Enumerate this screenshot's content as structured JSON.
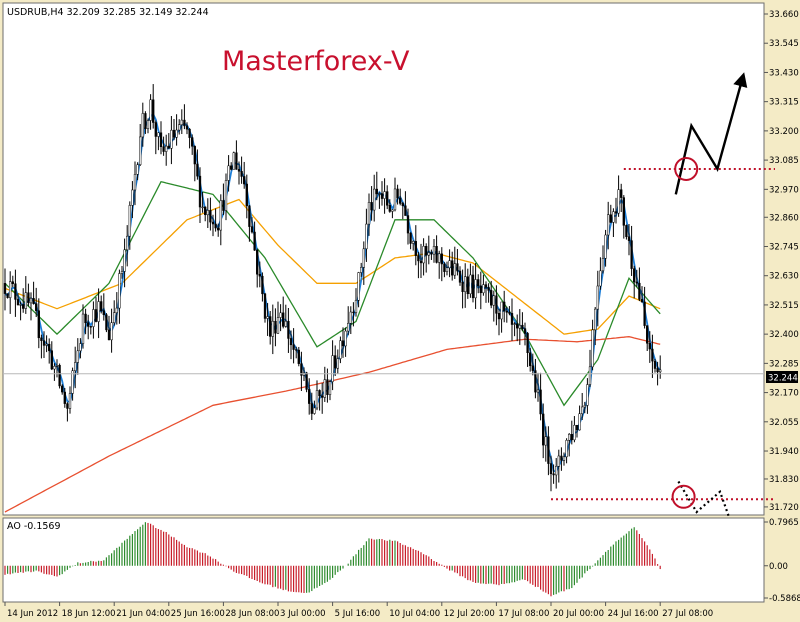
{
  "chart_data": [
    {
      "type": "candlestick",
      "symbol_header": "USDRUB,H4  32.209 32.285 32.149 32.244",
      "watermark": "Masterforex-V",
      "ylim": [
        31.7,
        33.66
      ],
      "y_ticks": [
        33.66,
        33.545,
        33.43,
        33.315,
        33.2,
        33.085,
        32.97,
        32.86,
        32.745,
        32.63,
        32.515,
        32.4,
        32.285,
        32.17,
        32.055,
        31.94,
        31.83,
        31.72
      ],
      "current_price_label": "32.244",
      "current_price": 32.244,
      "x_tick_labels": [
        "14 Jun 2012",
        "18 Jun 12:00",
        "21 Jun 04:00",
        "25 Jun 16:00",
        "28 Jun 08:00",
        "3 Jul 00:00",
        "5 Jul 16:00",
        "10 Jul 04:00",
        "12 Jul 20:00",
        "17 Jul 08:00",
        "20 Jul 00:00",
        "24 Jul 16:00",
        "27 Jul 08:00"
      ],
      "price_path_anchors": [
        [
          0,
          32.6
        ],
        [
          10,
          32.5
        ],
        [
          18,
          32.3
        ],
        [
          24,
          32.1
        ],
        [
          30,
          32.45
        ],
        [
          36,
          32.5
        ],
        [
          40,
          32.4
        ],
        [
          46,
          32.7
        ],
        [
          52,
          33.2
        ],
        [
          56,
          33.3
        ],
        [
          60,
          33.1
        ],
        [
          66,
          33.2
        ],
        [
          70,
          33.2
        ],
        [
          76,
          32.9
        ],
        [
          82,
          32.85
        ],
        [
          88,
          33.1
        ],
        [
          92,
          33.0
        ],
        [
          98,
          32.6
        ],
        [
          102,
          32.4
        ],
        [
          106,
          32.5
        ],
        [
          112,
          32.3
        ],
        [
          118,
          32.1
        ],
        [
          124,
          32.2
        ],
        [
          130,
          32.4
        ],
        [
          136,
          32.6
        ],
        [
          140,
          32.9
        ],
        [
          144,
          32.95
        ],
        [
          148,
          32.9
        ],
        [
          152,
          32.95
        ],
        [
          156,
          32.8
        ],
        [
          160,
          32.7
        ],
        [
          166,
          32.7
        ],
        [
          172,
          32.65
        ],
        [
          178,
          32.6
        ],
        [
          184,
          32.55
        ],
        [
          190,
          32.5
        ],
        [
          196,
          32.4
        ],
        [
          200,
          32.38
        ],
        [
          204,
          32.2
        ],
        [
          208,
          31.95
        ],
        [
          212,
          31.85
        ],
        [
          216,
          31.98
        ],
        [
          220,
          32.05
        ],
        [
          224,
          32.2
        ],
        [
          228,
          32.62
        ],
        [
          232,
          32.85
        ],
        [
          236,
          32.95
        ],
        [
          240,
          32.75
        ],
        [
          244,
          32.55
        ],
        [
          248,
          32.3
        ],
        [
          252,
          32.24
        ]
      ],
      "moving_averages": [
        {
          "color": "#f5a000",
          "anchors": [
            [
              0,
              32.58
            ],
            [
              20,
              32.5
            ],
            [
              45,
              32.6
            ],
            [
              70,
              32.85
            ],
            [
              90,
              32.93
            ],
            [
              105,
              32.75
            ],
            [
              120,
              32.6
            ],
            [
              135,
              32.6
            ],
            [
              150,
              32.7
            ],
            [
              165,
              32.72
            ],
            [
              180,
              32.68
            ],
            [
              200,
              32.52
            ],
            [
              215,
              32.4
            ],
            [
              228,
              32.42
            ],
            [
              240,
              32.55
            ],
            [
              252,
              32.5
            ]
          ]
        },
        {
          "color": "#2a8a2a",
          "anchors": [
            [
              0,
              32.6
            ],
            [
              20,
              32.4
            ],
            [
              40,
              32.6
            ],
            [
              60,
              33.0
            ],
            [
              80,
              32.95
            ],
            [
              100,
              32.7
            ],
            [
              120,
              32.35
            ],
            [
              135,
              32.45
            ],
            [
              150,
              32.85
            ],
            [
              165,
              32.85
            ],
            [
              180,
              32.7
            ],
            [
              200,
              32.4
            ],
            [
              215,
              32.12
            ],
            [
              228,
              32.3
            ],
            [
              240,
              32.62
            ],
            [
              252,
              32.48
            ]
          ]
        },
        {
          "color": "#e85030",
          "anchors": [
            [
              0,
              31.7
            ],
            [
              40,
              31.92
            ],
            [
              80,
              32.12
            ],
            [
              110,
              32.18
            ],
            [
              140,
              32.25
            ],
            [
              170,
              32.34
            ],
            [
              200,
              32.38
            ],
            [
              220,
              32.37
            ],
            [
              240,
              32.39
            ],
            [
              252,
              32.36
            ]
          ]
        }
      ],
      "levels": [
        {
          "price": 33.05,
          "color": "#c0102a"
        },
        {
          "price": 31.75,
          "color": "#c0102a"
        }
      ],
      "forecast_up_path": [
        [
          258,
          32.95
        ],
        [
          264,
          33.22
        ],
        [
          274,
          33.05
        ],
        [
          284,
          33.42
        ]
      ],
      "forecast_down_path": [
        [
          259,
          31.82
        ],
        [
          266,
          31.7
        ],
        [
          275,
          31.78
        ],
        [
          283,
          31.55
        ]
      ],
      "circles": [
        {
          "bar": 262,
          "price": 33.05,
          "color": "#c0102a"
        },
        {
          "bar": 261,
          "price": 31.76,
          "color": "#c0102a"
        }
      ],
      "arrow_color": "#000000"
    },
    {
      "type": "bar",
      "label": "AO -0.1569",
      "ylim": [
        -0.5868,
        0.7965
      ],
      "y_ticks": [
        0.7965,
        0.0,
        -0.5868
      ],
      "y_tick_labels": [
        "0.7965",
        "0.00",
        "-0.5868"
      ],
      "up_color": "#2e8b2e",
      "down_color": "#c81e2a",
      "ao_path_anchors": [
        [
          0,
          -0.15
        ],
        [
          12,
          -0.1
        ],
        [
          20,
          -0.2
        ],
        [
          28,
          0.05
        ],
        [
          38,
          0.1
        ],
        [
          46,
          0.45
        ],
        [
          54,
          0.8
        ],
        [
          62,
          0.6
        ],
        [
          70,
          0.35
        ],
        [
          78,
          0.2
        ],
        [
          88,
          -0.1
        ],
        [
          98,
          -0.3
        ],
        [
          108,
          -0.45
        ],
        [
          116,
          -0.5
        ],
        [
          124,
          -0.3
        ],
        [
          132,
          0.05
        ],
        [
          140,
          0.5
        ],
        [
          150,
          0.45
        ],
        [
          160,
          0.25
        ],
        [
          170,
          -0.05
        ],
        [
          180,
          -0.3
        ],
        [
          190,
          -0.35
        ],
        [
          200,
          -0.25
        ],
        [
          210,
          -0.55
        ],
        [
          218,
          -0.4
        ],
        [
          226,
          0.0
        ],
        [
          234,
          0.4
        ],
        [
          242,
          0.7
        ],
        [
          248,
          0.3
        ],
        [
          253,
          -0.15
        ]
      ]
    }
  ]
}
